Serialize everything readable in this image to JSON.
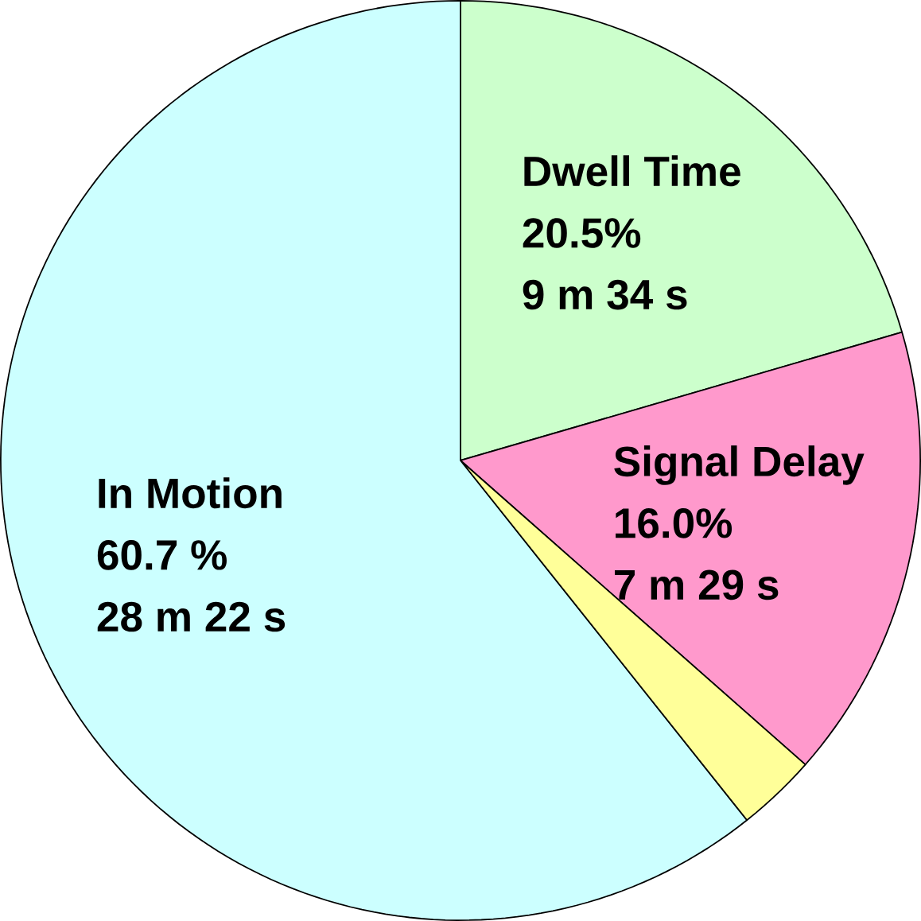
{
  "chart_data": {
    "type": "pie",
    "categories": [
      "Dwell Time",
      "Signal Delay",
      null,
      "In Motion"
    ],
    "values": [
      20.5,
      16.0,
      2.8,
      60.7
    ],
    "colors": [
      "#ccffcc",
      "#ff99cc",
      "#ffff99",
      "#ccffff"
    ],
    "value_labels": [
      "20.5%",
      "16.0%",
      null,
      "60.7 %"
    ],
    "annotations": [
      "9 m 34 s",
      "7 m 29 s",
      "28 m 22 s"
    ]
  }
}
